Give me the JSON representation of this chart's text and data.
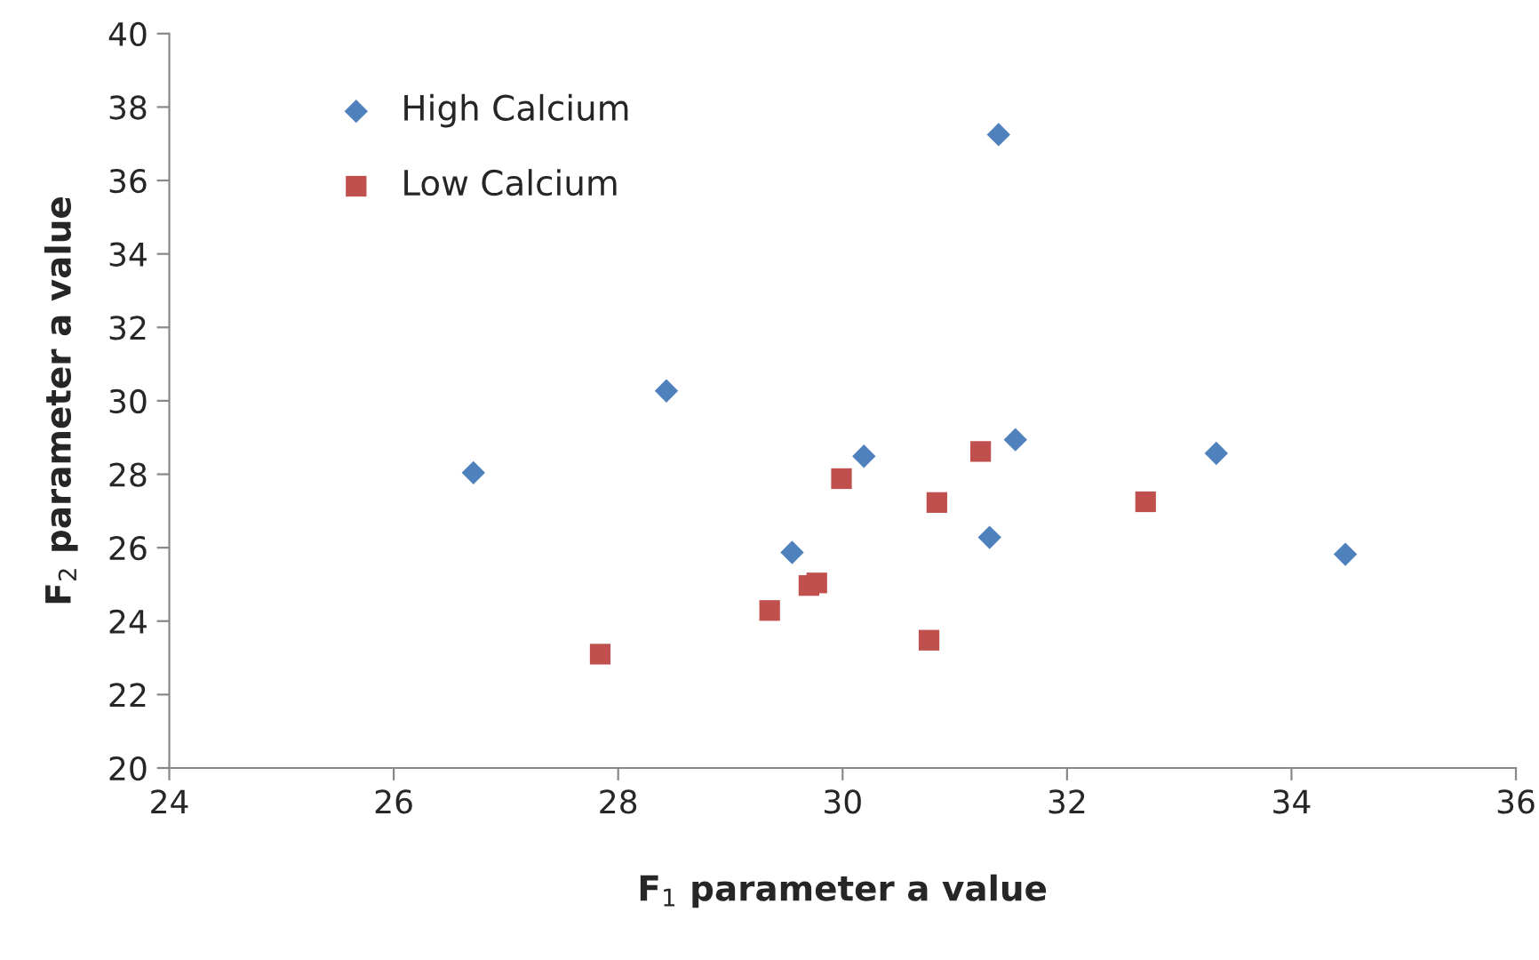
{
  "chart_data": {
    "type": "scatter",
    "xlabel": "F$_{1}$ parameter a value",
    "ylabel": "F$_{2}$ parameter a value",
    "xlim": [
      24,
      36
    ],
    "xticks": [
      24,
      26,
      28,
      30,
      32,
      34,
      36
    ],
    "ylim": [
      20,
      40
    ],
    "yticks": [
      20,
      22,
      24,
      26,
      28,
      30,
      32,
      34,
      36,
      38,
      40
    ],
    "grid": false,
    "legend": "top left",
    "series": [
      {
        "name": "High Calcium",
        "color": "#4f81bd",
        "marker": "diamond",
        "x": [
          26.71,
          28.43,
          29.55,
          30.19,
          31.39,
          31.54,
          33.33,
          31.31,
          34.48
        ],
        "values": [
          28.04,
          30.27,
          25.87,
          28.49,
          37.25,
          28.94,
          28.57,
          26.28,
          25.82
        ]
      },
      {
        "name": "Low Calcium",
        "color": "#c0504d",
        "marker": "square",
        "x": [
          27.84,
          29.35,
          29.7,
          29.77,
          29.99,
          31.23,
          30.84,
          32.7,
          30.77
        ],
        "values": [
          23.1,
          24.29,
          24.97,
          25.04,
          27.88,
          28.62,
          27.23,
          27.25,
          23.48
        ]
      }
    ]
  }
}
